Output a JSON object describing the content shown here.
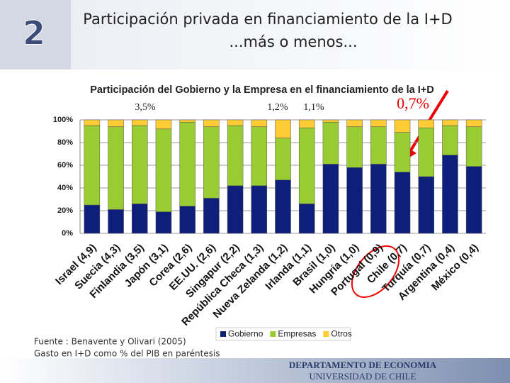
{
  "slide_number": "2",
  "title": "Participación privada en financiamiento de la I+D",
  "subtitle": "...más o menos...",
  "source": "Fuente : Benavente y Olivari (2005)",
  "note": "Gasto en I+D como % del PIB en paréntesis",
  "department": "DEPARTAMENTO DE ECONOMIA",
  "university": "UNIVERSIDAD DE CHILE",
  "chart_data": {
    "type": "stacked_bar",
    "title": "Participación del Gobierno y la Empresa en el financiamiento de la I+D",
    "categories": [
      "Israel (4,9)",
      "Suecia (4,3)",
      "Finlandia (3,5)",
      "Japón (3,1)",
      "Corea (2,6)",
      "EE.UU. (2,6)",
      "Singapur (2,2)",
      "República Checa (1,3)",
      "Nueva Zelanda (1,2)",
      "Irlanda (1,1)",
      "Brasil (1,0)",
      "Hungría (1,0)",
      "Portugal (0,9)",
      "Chile (0,7)",
      "Turquía (0,7)",
      "Argentina (0,4)",
      "México (0,4)"
    ],
    "series": [
      {
        "name": "Gobierno",
        "color": "#0d1f7a",
        "values": [
          25,
          21,
          26,
          19,
          24,
          31,
          42,
          42,
          47,
          26,
          61,
          58,
          61,
          54,
          50,
          69,
          59
        ]
      },
      {
        "name": "Empresas",
        "color": "#99cc33",
        "values": [
          70,
          73,
          69,
          73,
          74,
          63,
          53,
          52,
          37,
          67,
          37,
          36,
          33,
          35,
          43,
          26,
          35
        ]
      },
      {
        "name": "Otros",
        "color": "#ffcc33",
        "values": [
          5,
          6,
          5,
          8,
          2,
          6,
          5,
          6,
          16,
          7,
          2,
          6,
          6,
          11,
          7,
          5,
          6
        ]
      }
    ],
    "ylim": [
      0,
      100
    ],
    "yticks": [
      {
        "value": 0,
        "label": "0%"
      },
      {
        "value": 20,
        "label": "20%"
      },
      {
        "value": 40,
        "label": "40%"
      },
      {
        "value": 60,
        "label": "60%"
      },
      {
        "value": 80,
        "label": "80%"
      },
      {
        "value": 100,
        "label": "100%"
      }
    ],
    "grid": true,
    "legend": "bottom",
    "annotations": [
      "3,5%",
      "1,2%",
      "1,1%",
      "0,7%"
    ]
  }
}
